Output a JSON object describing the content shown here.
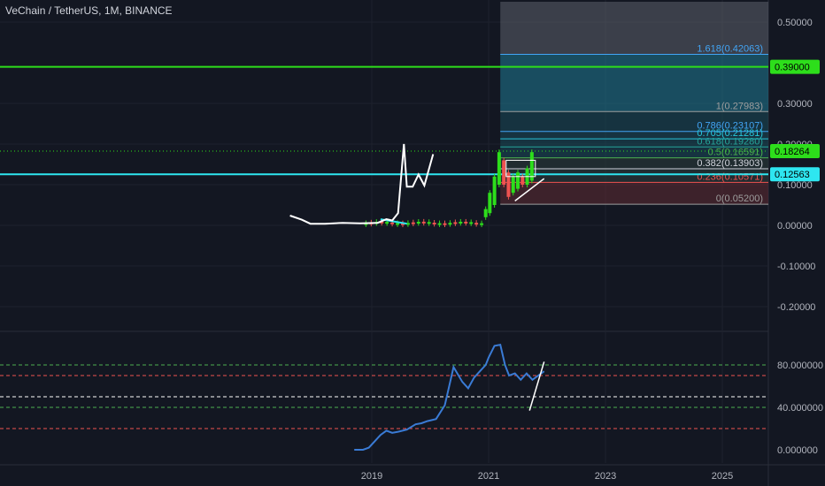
{
  "header": {
    "title": "VeChain / TetherUS, 1M, BINANCE"
  },
  "colors": {
    "bg": "#131722",
    "grid": "#1e222d",
    "axis_text": "#b2b5be",
    "green_line": "#2dde1b",
    "cyan_line": "#2ee6f0",
    "white": "#ffffff",
    "rsi": "#3a7bd5",
    "up": "#26a69a",
    "down": "#ef5350"
  },
  "chart_data": [
    {
      "type": "line",
      "name": "price-panel",
      "ylim": [
        -0.25,
        0.55
      ],
      "y_ticks": [
        {
          "value": 0.5,
          "label": "0.50000"
        },
        {
          "value": 0.3,
          "label": "0.30000"
        },
        {
          "value": 0.2,
          "label": "0.20000"
        },
        {
          "value": 0.1,
          "label": "0.10000"
        },
        {
          "value": 0.0,
          "label": "0.00000"
        },
        {
          "value": -0.1,
          "label": "-0.10000"
        },
        {
          "value": -0.2,
          "label": "-0.20000"
        }
      ],
      "x_ticks": [
        "2019",
        "2021",
        "2023",
        "2025"
      ],
      "price_labels": [
        {
          "value": 0.39,
          "label": "0.39000",
          "color": "#2dde1b"
        },
        {
          "value": 0.18264,
          "label": "0.18264",
          "color": "#2dde1b"
        },
        {
          "value": 0.12563,
          "label": "0.12563",
          "color": "#2ee6f0"
        }
      ],
      "horizontal_lines": [
        {
          "value": 0.39,
          "color": "#2dde1b"
        },
        {
          "value": 0.12563,
          "color": "#2ee6f0"
        }
      ],
      "fib_levels": [
        {
          "label": "1.618(0.42063)",
          "value": 0.42063,
          "color": "#42a5f5"
        },
        {
          "label": "1(0.27983)",
          "value": 0.27983,
          "color": "#9e9e9e"
        },
        {
          "label": "0.786(0.23107)",
          "value": 0.23107,
          "color": "#42a5f5"
        },
        {
          "label": "0.705(0.21281)",
          "value": 0.21281,
          "color": "#26c6da"
        },
        {
          "label": "0.618(0.19280)",
          "value": 0.1928,
          "color": "#26a69a"
        },
        {
          "label": "0.5(0.16591)",
          "value": 0.16591,
          "color": "#4caf50"
        },
        {
          "label": "0.382(0.13903)",
          "value": 0.13903,
          "color": "#d1d4dc"
        },
        {
          "label": "0.236(0.10571)",
          "value": 0.10571,
          "color": "#ef5350"
        },
        {
          "label": "0(0.05200)",
          "value": 0.052,
          "color": "#9e9e9e"
        }
      ],
      "series": [
        {
          "name": "",
          "color": "#ffffff",
          "x": [
            2017.6,
            2017.8,
            2017.95,
            2018.2,
            2018.5,
            2018.8,
            2019.1,
            2019.25,
            2019.35,
            2019.45,
            2019.55,
            2019.6,
            2019.7,
            2019.8,
            2019.9,
            2020.05
          ],
          "y": [
            0.024,
            0.014,
            0.004,
            0.004,
            0.006,
            0.005,
            0.006,
            0.015,
            0.012,
            0.03,
            0.2,
            0.095,
            0.095,
            0.125,
            0.098,
            0.175
          ]
        }
      ]
    },
    {
      "type": "line",
      "name": "rsi-panel",
      "ylim": [
        -5,
        95
      ],
      "y_ticks": [
        {
          "value": 80,
          "label": "80.000000"
        },
        {
          "value": 40,
          "label": "40.000000"
        },
        {
          "value": 0,
          "label": "0.000000"
        }
      ],
      "reference_lines": [
        {
          "value": 80,
          "color": "#4caf50"
        },
        {
          "value": 70,
          "color": "#ef5350"
        },
        {
          "value": 50,
          "color": "#ffffff"
        },
        {
          "value": 40,
          "color": "#4caf50"
        },
        {
          "value": 20,
          "color": "#ef5350"
        }
      ],
      "series": [
        {
          "name": "",
          "color": "#3a7bd5",
          "x": [
            2018.7,
            2018.85,
            2018.95,
            2019.05,
            2019.15,
            2019.25,
            2019.35,
            2019.45,
            2019.6,
            2019.75,
            2019.85,
            2019.95,
            2020.1,
            2020.25,
            2020.4,
            2020.55,
            2020.65,
            2020.75,
            2020.85,
            2020.95,
            2021.0,
            2021.1,
            2021.2,
            2021.28,
            2021.35,
            2021.45,
            2021.55,
            2021.65,
            2021.75,
            2021.85,
            2021.95
          ],
          "y": [
            0,
            0,
            2,
            8,
            14,
            18,
            16,
            17,
            19,
            24,
            25,
            27,
            29,
            42,
            78,
            64,
            58,
            68,
            74,
            80,
            87,
            98,
            99,
            80,
            70,
            72,
            66,
            72,
            66,
            70,
            74
          ]
        },
        {
          "name": "",
          "color": "#ffffff",
          "x": [
            2021.7,
            2021.95
          ],
          "y": [
            37,
            83
          ]
        }
      ]
    }
  ]
}
